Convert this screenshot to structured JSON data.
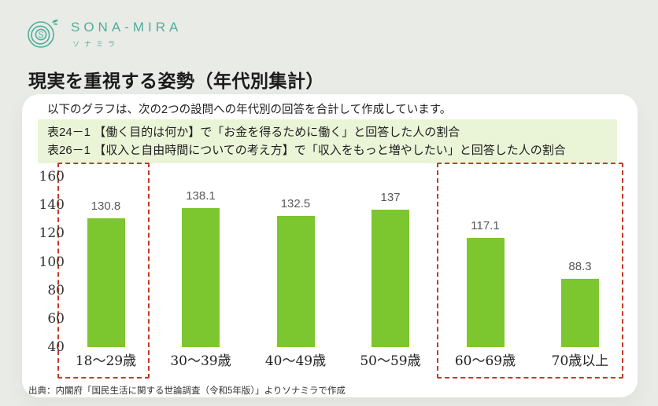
{
  "colors": {
    "background": "#e9ebe6",
    "card": "#ffffff",
    "brand_teal": "#4fae9e",
    "bar_green": "#7cc62f",
    "note_bg": "#eaf5d8",
    "highlight_red": "#c23b26",
    "value_label_gray": "#595959"
  },
  "logo": {
    "brand": "SONA-MIRA",
    "brand_sub": "ソナミラ"
  },
  "page_title": "現実を重視する姿勢（年代別集計）",
  "card": {
    "description": "以下のグラフは、次の2つの設問への年代別の回答を合計して作成しています。",
    "note_lines": [
      "表24－1 【働く目的は何か】で「お金を得るために働く」と回答した人の割合",
      "表26－1 【収入と自由時間についての考え方】で「収入をもっと増やしたい」と回答した人の割合"
    ],
    "source": "出典：内閣府「国民生活に関する世論調査（令和5年版）」よりソナミラで作成"
  },
  "chart_data": {
    "type": "bar",
    "categories": [
      "18～29歳",
      "30～39歳",
      "40～49歳",
      "50～59歳",
      "60～69歳",
      "70歳以上"
    ],
    "values": [
      130.8,
      138.1,
      132.5,
      137,
      117.1,
      88.3
    ],
    "value_labels": [
      "130.8",
      "138.1",
      "132.5",
      "137",
      "117.1",
      "88.3"
    ],
    "title": "",
    "xlabel": "",
    "ylabel": "",
    "ylim": [
      40,
      160
    ],
    "yticks": [
      160,
      140,
      120,
      100,
      80,
      60,
      40
    ],
    "grid": false,
    "legend": false,
    "bar_color": "#7cc62f",
    "highlight_groups": [
      [
        0,
        0
      ],
      [
        4,
        5
      ]
    ]
  }
}
